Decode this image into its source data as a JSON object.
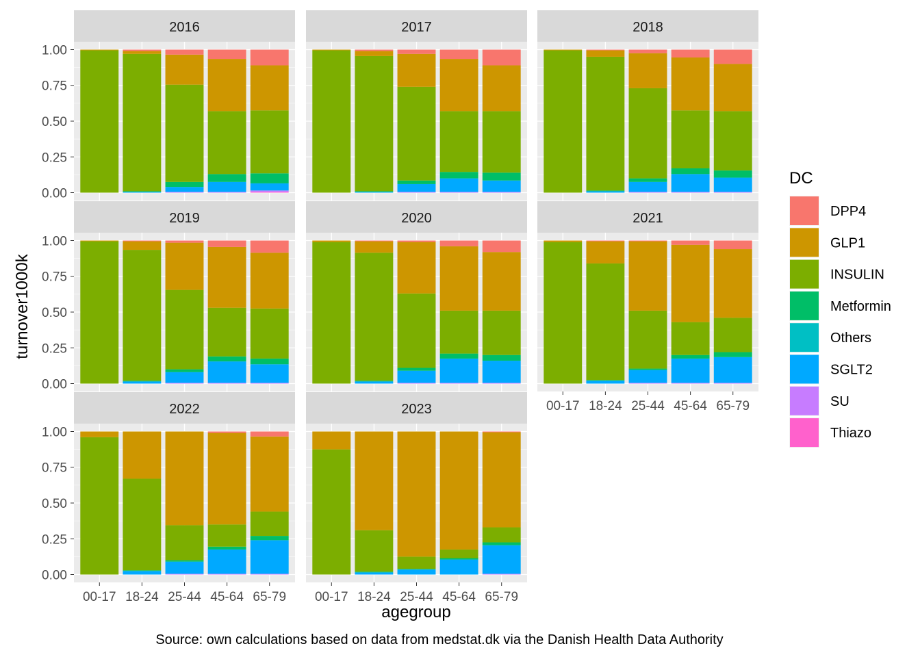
{
  "chart_data": {
    "type": "bar",
    "stacked": "fill",
    "facet_by": "year",
    "x": [
      "00-17",
      "18-24",
      "25-44",
      "45-64",
      "65-79"
    ],
    "xlabel": "agegroup",
    "ylabel": "turnover1000k",
    "ylim": [
      0,
      1
    ],
    "yticks": [
      "0.00",
      "0.25",
      "0.50",
      "0.75",
      "1.00"
    ],
    "caption": "Source: own calculations based on data from medstat.dk via the Danish Health Data Authority",
    "legend": {
      "title": "DC",
      "placement": "right",
      "entries": [
        {
          "name": "DPP4",
          "color": "#F8766D"
        },
        {
          "name": "GLP1",
          "color": "#CD9600"
        },
        {
          "name": "INSULIN",
          "color": "#7CAE00"
        },
        {
          "name": "Metformin",
          "color": "#00BE67"
        },
        {
          "name": "Others",
          "color": "#00BFC4"
        },
        {
          "name": "SGLT2",
          "color": "#00A9FF"
        },
        {
          "name": "SU",
          "color": "#C77CFF"
        },
        {
          "name": "Thiazo",
          "color": "#FF61CC"
        }
      ]
    },
    "stack_order_bottom_to_top": [
      "Thiazo",
      "SU",
      "SGLT2",
      "Others",
      "Metformin",
      "INSULIN",
      "GLP1",
      "DPP4"
    ],
    "panels": [
      {
        "year": "2016",
        "bars": [
          {
            "Thiazo": 0,
            "SU": 0,
            "SGLT2": 0,
            "Others": 0,
            "Metformin": 0,
            "INSULIN": 0.995,
            "GLP1": 0.005,
            "DPP4": 0
          },
          {
            "Thiazo": 0,
            "SU": 0,
            "SGLT2": 0.005,
            "Others": 0,
            "Metformin": 0.005,
            "INSULIN": 0.96,
            "GLP1": 0.02,
            "DPP4": 0.01
          },
          {
            "Thiazo": 0,
            "SU": 0.005,
            "SGLT2": 0.035,
            "Others": 0,
            "Metformin": 0.035,
            "INSULIN": 0.68,
            "GLP1": 0.21,
            "DPP4": 0.035
          },
          {
            "Thiazo": 0,
            "SU": 0.005,
            "SGLT2": 0.07,
            "Others": 0,
            "Metformin": 0.055,
            "INSULIN": 0.44,
            "GLP1": 0.365,
            "DPP4": 0.065
          },
          {
            "Thiazo": 0.005,
            "SU": 0.01,
            "SGLT2": 0.05,
            "Others": 0,
            "Metformin": 0.07,
            "INSULIN": 0.44,
            "GLP1": 0.315,
            "DPP4": 0.11
          }
        ]
      },
      {
        "year": "2017",
        "bars": [
          {
            "Thiazo": 0,
            "SU": 0,
            "SGLT2": 0,
            "Others": 0,
            "Metformin": 0,
            "INSULIN": 0.995,
            "GLP1": 0.005,
            "DPP4": 0
          },
          {
            "Thiazo": 0,
            "SU": 0,
            "SGLT2": 0.005,
            "Others": 0,
            "Metformin": 0.005,
            "INSULIN": 0.945,
            "GLP1": 0.035,
            "DPP4": 0.01
          },
          {
            "Thiazo": 0,
            "SU": 0.005,
            "SGLT2": 0.055,
            "Others": 0,
            "Metformin": 0.025,
            "INSULIN": 0.655,
            "GLP1": 0.23,
            "DPP4": 0.03
          },
          {
            "Thiazo": 0,
            "SU": 0.005,
            "SGLT2": 0.095,
            "Others": 0,
            "Metformin": 0.045,
            "INSULIN": 0.425,
            "GLP1": 0.365,
            "DPP4": 0.065
          },
          {
            "Thiazo": 0,
            "SU": 0.005,
            "SGLT2": 0.08,
            "Others": 0,
            "Metformin": 0.055,
            "INSULIN": 0.43,
            "GLP1": 0.32,
            "DPP4": 0.11
          }
        ]
      },
      {
        "year": "2018",
        "bars": [
          {
            "Thiazo": 0,
            "SU": 0,
            "SGLT2": 0,
            "Others": 0,
            "Metformin": 0,
            "INSULIN": 0.995,
            "GLP1": 0.005,
            "DPP4": 0
          },
          {
            "Thiazo": 0,
            "SU": 0,
            "SGLT2": 0.01,
            "Others": 0,
            "Metformin": 0.005,
            "INSULIN": 0.935,
            "GLP1": 0.045,
            "DPP4": 0.005
          },
          {
            "Thiazo": 0,
            "SU": 0.005,
            "SGLT2": 0.07,
            "Others": 0,
            "Metformin": 0.025,
            "INSULIN": 0.63,
            "GLP1": 0.245,
            "DPP4": 0.025
          },
          {
            "Thiazo": 0,
            "SU": 0.005,
            "SGLT2": 0.125,
            "Others": 0,
            "Metformin": 0.04,
            "INSULIN": 0.405,
            "GLP1": 0.37,
            "DPP4": 0.055
          },
          {
            "Thiazo": 0,
            "SU": 0.005,
            "SGLT2": 0.1,
            "Others": 0,
            "Metformin": 0.05,
            "INSULIN": 0.415,
            "GLP1": 0.33,
            "DPP4": 0.1
          }
        ]
      },
      {
        "year": "2019",
        "bars": [
          {
            "Thiazo": 0,
            "SU": 0,
            "SGLT2": 0,
            "Others": 0,
            "Metformin": 0,
            "INSULIN": 0.995,
            "GLP1": 0.005,
            "DPP4": 0
          },
          {
            "Thiazo": 0,
            "SU": 0,
            "SGLT2": 0.015,
            "Others": 0,
            "Metformin": 0.005,
            "INSULIN": 0.915,
            "GLP1": 0.06,
            "DPP4": 0.005
          },
          {
            "Thiazo": 0,
            "SU": 0.005,
            "SGLT2": 0.075,
            "Others": 0,
            "Metformin": 0.02,
            "INSULIN": 0.555,
            "GLP1": 0.33,
            "DPP4": 0.015
          },
          {
            "Thiazo": 0,
            "SU": 0.005,
            "SGLT2": 0.15,
            "Others": 0,
            "Metformin": 0.035,
            "INSULIN": 0.34,
            "GLP1": 0.425,
            "DPP4": 0.045
          },
          {
            "Thiazo": 0,
            "SU": 0.005,
            "SGLT2": 0.13,
            "Others": 0,
            "Metformin": 0.04,
            "INSULIN": 0.35,
            "GLP1": 0.39,
            "DPP4": 0.085
          }
        ]
      },
      {
        "year": "2020",
        "bars": [
          {
            "Thiazo": 0,
            "SU": 0,
            "SGLT2": 0,
            "Others": 0,
            "Metformin": 0,
            "INSULIN": 0.99,
            "GLP1": 0.01,
            "DPP4": 0
          },
          {
            "Thiazo": 0,
            "SU": 0,
            "SGLT2": 0.015,
            "Others": 0,
            "Metformin": 0.005,
            "INSULIN": 0.895,
            "GLP1": 0.08,
            "DPP4": 0.005
          },
          {
            "Thiazo": 0,
            "SU": 0.005,
            "SGLT2": 0.085,
            "Others": 0,
            "Metformin": 0.02,
            "INSULIN": 0.52,
            "GLP1": 0.36,
            "DPP4": 0.01
          },
          {
            "Thiazo": 0,
            "SU": 0.005,
            "SGLT2": 0.17,
            "Others": 0,
            "Metformin": 0.035,
            "INSULIN": 0.3,
            "GLP1": 0.45,
            "DPP4": 0.04
          },
          {
            "Thiazo": 0,
            "SU": 0.005,
            "SGLT2": 0.155,
            "Others": 0,
            "Metformin": 0.04,
            "INSULIN": 0.31,
            "GLP1": 0.41,
            "DPP4": 0.08
          }
        ]
      },
      {
        "year": "2021",
        "bars": [
          {
            "Thiazo": 0,
            "SU": 0,
            "SGLT2": 0,
            "Others": 0,
            "Metformin": 0,
            "INSULIN": 0.99,
            "GLP1": 0.01,
            "DPP4": 0
          },
          {
            "Thiazo": 0,
            "SU": 0,
            "SGLT2": 0.02,
            "Others": 0,
            "Metformin": 0.005,
            "INSULIN": 0.815,
            "GLP1": 0.155,
            "DPP4": 0.005
          },
          {
            "Thiazo": 0,
            "SU": 0.005,
            "SGLT2": 0.09,
            "Others": 0,
            "Metformin": 0.01,
            "INSULIN": 0.405,
            "GLP1": 0.485,
            "DPP4": 0.005
          },
          {
            "Thiazo": 0,
            "SU": 0.005,
            "SGLT2": 0.17,
            "Others": 0,
            "Metformin": 0.025,
            "INSULIN": 0.23,
            "GLP1": 0.54,
            "DPP4": 0.03
          },
          {
            "Thiazo": 0,
            "SU": 0.005,
            "SGLT2": 0.18,
            "Others": 0,
            "Metformin": 0.035,
            "INSULIN": 0.24,
            "GLP1": 0.48,
            "DPP4": 0.06
          }
        ]
      },
      {
        "year": "2022",
        "bars": [
          {
            "Thiazo": 0,
            "SU": 0,
            "SGLT2": 0,
            "Others": 0,
            "Metformin": 0,
            "INSULIN": 0.96,
            "GLP1": 0.04,
            "DPP4": 0
          },
          {
            "Thiazo": 0,
            "SU": 0,
            "SGLT2": 0.025,
            "Others": 0,
            "Metformin": 0.005,
            "INSULIN": 0.64,
            "GLP1": 0.33,
            "DPP4": 0
          },
          {
            "Thiazo": 0,
            "SU": 0.005,
            "SGLT2": 0.085,
            "Others": 0,
            "Metformin": 0.01,
            "INSULIN": 0.245,
            "GLP1": 0.655,
            "DPP4": 0
          },
          {
            "Thiazo": 0,
            "SU": 0.005,
            "SGLT2": 0.17,
            "Others": 0,
            "Metformin": 0.02,
            "INSULIN": 0.155,
            "GLP1": 0.64,
            "DPP4": 0.01
          },
          {
            "Thiazo": 0,
            "SU": 0.005,
            "SGLT2": 0.235,
            "Others": 0,
            "Metformin": 0.03,
            "INSULIN": 0.17,
            "GLP1": 0.525,
            "DPP4": 0.035
          }
        ]
      },
      {
        "year": "2023",
        "bars": [
          {
            "Thiazo": 0,
            "SU": 0,
            "SGLT2": 0,
            "Others": 0,
            "Metformin": 0,
            "INSULIN": 0.875,
            "GLP1": 0.125,
            "DPP4": 0
          },
          {
            "Thiazo": 0,
            "SU": 0,
            "SGLT2": 0.015,
            "Others": 0,
            "Metformin": 0.005,
            "INSULIN": 0.29,
            "GLP1": 0.69,
            "DPP4": 0
          },
          {
            "Thiazo": 0,
            "SU": 0,
            "SGLT2": 0.035,
            "Others": 0,
            "Metformin": 0.005,
            "INSULIN": 0.085,
            "GLP1": 0.875,
            "DPP4": 0
          },
          {
            "Thiazo": 0,
            "SU": 0,
            "SGLT2": 0.105,
            "Others": 0,
            "Metformin": 0.01,
            "INSULIN": 0.06,
            "GLP1": 0.825,
            "DPP4": 0
          },
          {
            "Thiazo": 0,
            "SU": 0.005,
            "SGLT2": 0.2,
            "Others": 0,
            "Metformin": 0.02,
            "INSULIN": 0.105,
            "GLP1": 0.665,
            "DPP4": 0.005
          }
        ]
      }
    ]
  }
}
